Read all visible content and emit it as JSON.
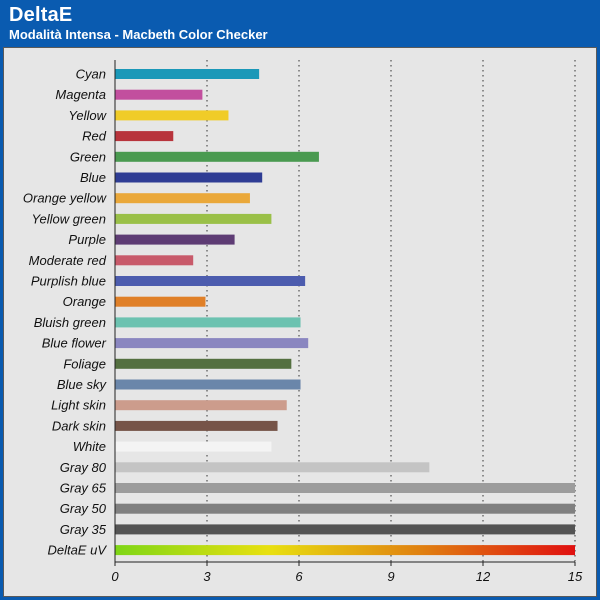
{
  "header": {
    "title": "DeltaE",
    "subtitle": "Modalità Intensa - Macbeth Color Checker"
  },
  "colors": {
    "header_bg": "#0a5bb0",
    "plot_bg": "#e6e6e6",
    "gradient_stops": [
      "#7ed616",
      "#e8e010",
      "#e08010",
      "#e01010"
    ]
  },
  "chart_data": {
    "type": "bar",
    "orientation": "horizontal",
    "title": "DeltaE",
    "subtitle": "Modalità Intensa - Macbeth Color Checker",
    "xlim": [
      0,
      15
    ],
    "xticks": [
      0,
      3,
      6,
      9,
      12,
      15
    ],
    "grid": true,
    "categories": [
      "Cyan",
      "Magenta",
      "Yellow",
      "Red",
      "Green",
      "Blue",
      "Orange yellow",
      "Yellow green",
      "Purple",
      "Moderate red",
      "Purplish blue",
      "Orange",
      "Bluish green",
      "Blue flower",
      "Foliage",
      "Blue sky",
      "Light skin",
      "Dark skin",
      "White",
      "Gray 80",
      "Gray 65",
      "Gray 50",
      "Gray 35",
      "DeltaE uV"
    ],
    "values": [
      4.7,
      2.85,
      3.7,
      1.9,
      6.65,
      4.8,
      4.4,
      5.1,
      3.9,
      2.55,
      6.2,
      2.95,
      6.05,
      6.3,
      5.75,
      6.05,
      5.6,
      5.3,
      5.1,
      10.25,
      15,
      15,
      15,
      15
    ],
    "bar_colors": [
      "#1a98b8",
      "#c24f9e",
      "#f0cc28",
      "#b8343c",
      "#4a9a50",
      "#2e3c94",
      "#eaa83a",
      "#9ac048",
      "#5e3c74",
      "#c85a6a",
      "#4c5cae",
      "#e08028",
      "#6cc2b0",
      "#8a86c0",
      "#547040",
      "#6a86aa",
      "#cc9c8c",
      "#765448",
      "#f4f4f4",
      "#c4c4c4",
      "#9c9c9c",
      "#808080",
      "#545454",
      "gradient"
    ]
  }
}
